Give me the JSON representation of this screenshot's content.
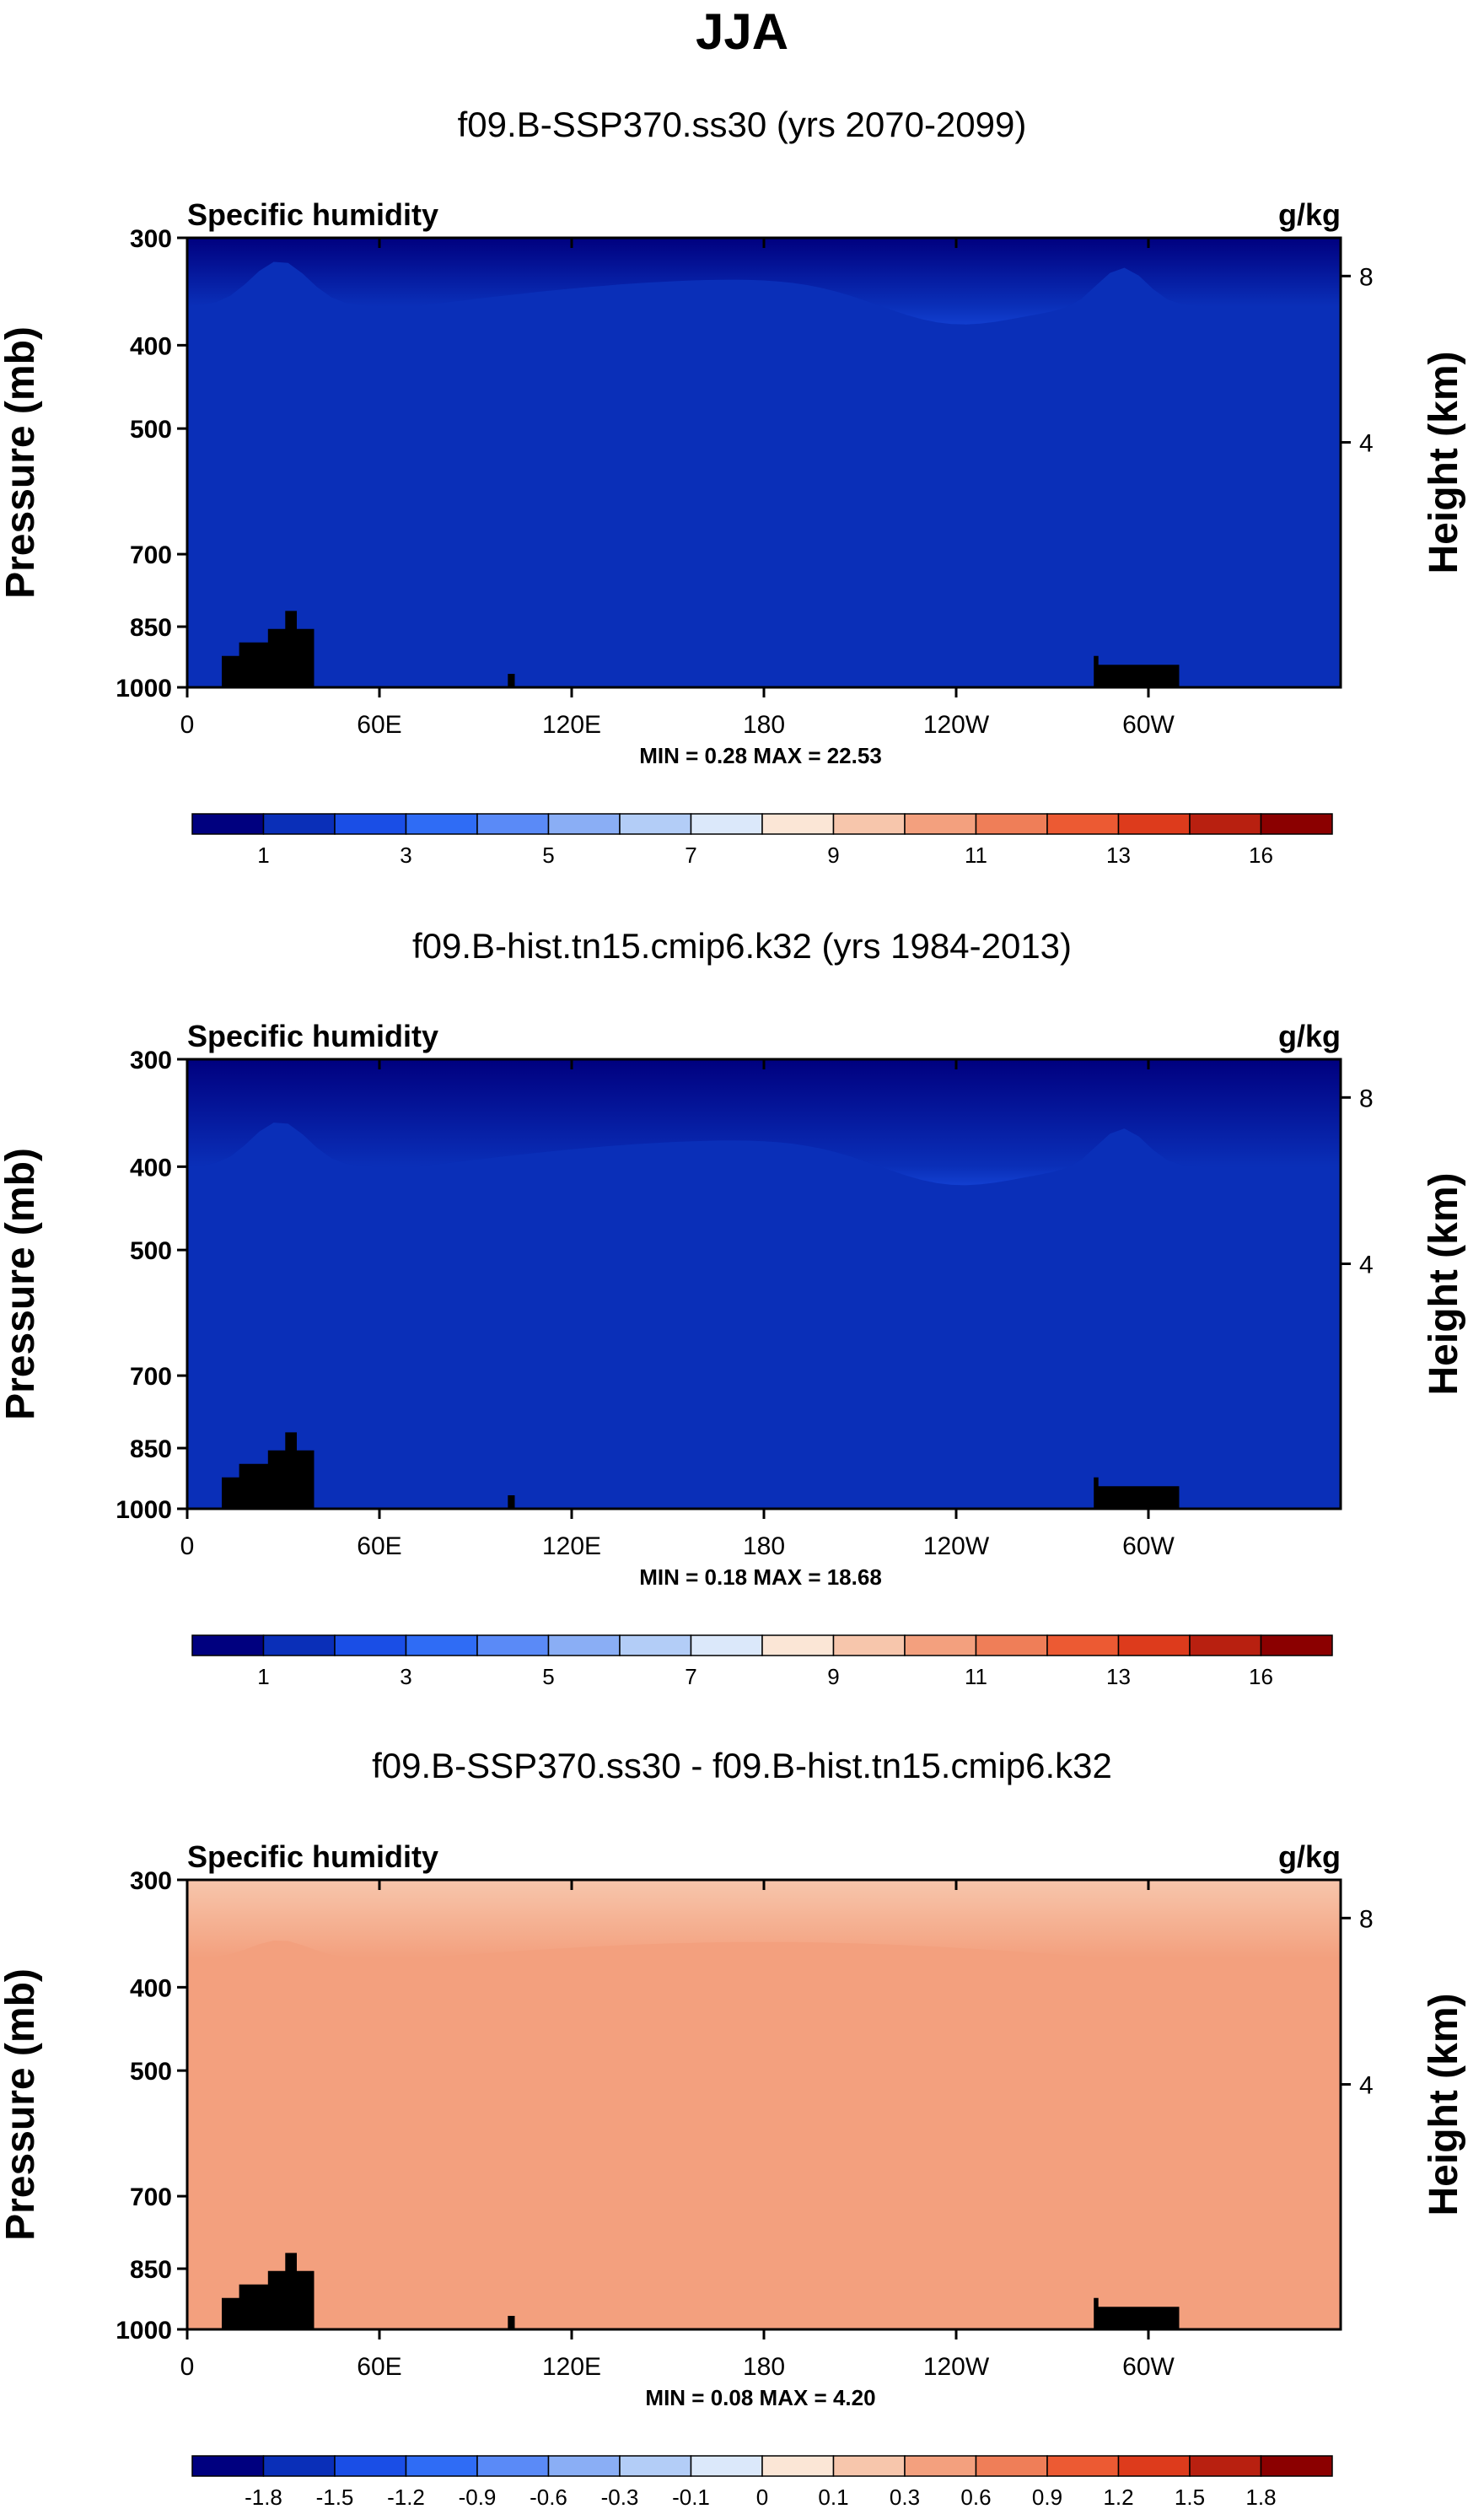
{
  "page_title": "JJA",
  "chart_data": [
    {
      "type": "heatmap",
      "title": "f09.B-SSP370.ss30 (yrs 2070-2099)",
      "left_label": "Specific humidity",
      "units": "g/kg",
      "ylabel": "Pressure (mb)",
      "ylabel_right": "Height (km)",
      "yticks": [
        "300",
        "400",
        "500",
        "700",
        "850",
        "1000"
      ],
      "yticks_right": [
        "8",
        "4"
      ],
      "xticks": [
        "0",
        "60E",
        "120E",
        "180",
        "120W",
        "60W"
      ],
      "stats": "MIN =   0.28  MAX =  22.53",
      "colorbar_labels": [
        "1",
        "3",
        "5",
        "7",
        "9",
        "11",
        "13",
        "16"
      ],
      "min": 0.28,
      "max": 22.53
    },
    {
      "type": "heatmap",
      "title": "f09.B-hist.tn15.cmip6.k32 (yrs 1984-2013)",
      "left_label": "Specific humidity",
      "units": "g/kg",
      "ylabel": "Pressure (mb)",
      "ylabel_right": "Height (km)",
      "yticks": [
        "300",
        "400",
        "500",
        "700",
        "850",
        "1000"
      ],
      "yticks_right": [
        "8",
        "4"
      ],
      "xticks": [
        "0",
        "60E",
        "120E",
        "180",
        "120W",
        "60W"
      ],
      "stats": "MIN =   0.18  MAX =  18.68",
      "colorbar_labels": [
        "1",
        "3",
        "5",
        "7",
        "9",
        "11",
        "13",
        "16"
      ],
      "min": 0.18,
      "max": 18.68
    },
    {
      "type": "heatmap",
      "title": "f09.B-SSP370.ss30 - f09.B-hist.tn15.cmip6.k32",
      "left_label": "Specific humidity",
      "units": "g/kg",
      "ylabel": "Pressure (mb)",
      "ylabel_right": "Height (km)",
      "yticks": [
        "300",
        "400",
        "500",
        "700",
        "850",
        "1000"
      ],
      "yticks_right": [
        "8",
        "4"
      ],
      "xticks": [
        "0",
        "60E",
        "120E",
        "180",
        "120W",
        "60W"
      ],
      "stats": "MIN =   0.08  MAX =   4.20",
      "colorbar_labels": [
        "-1.8",
        "-1.5",
        "-1.2",
        "-0.9",
        "-0.6",
        "-0.3",
        "-0.1",
        "0",
        "0.1",
        "0.3",
        "0.6",
        "0.9",
        "1.2",
        "1.5",
        "1.8"
      ],
      "min": 0.08,
      "max": 4.2
    }
  ],
  "palette": [
    "#00007f",
    "#0a2fb8",
    "#1a4ee6",
    "#2f6cf5",
    "#5a8af7",
    "#8aaef5",
    "#b3cdf7",
    "#dbe8fa",
    "#fbe6d6",
    "#f7c6ac",
    "#f3a07e",
    "#ef7e58",
    "#ec5a33",
    "#dd3b1c",
    "#b82010",
    "#8b0000"
  ]
}
